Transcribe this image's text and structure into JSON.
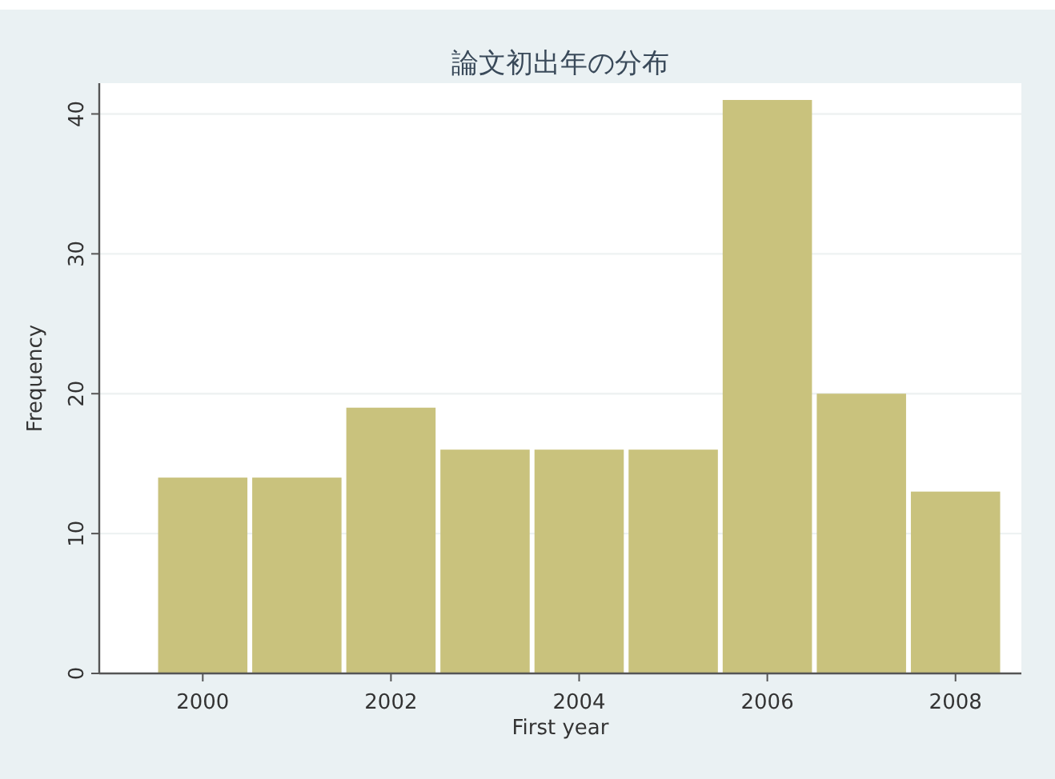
{
  "chart_data": {
    "type": "histogram",
    "title": "論文初出年の分布",
    "xlabel": "First year",
    "ylabel": "Frequency",
    "bins": [
      1999.5,
      2000.5,
      2001.5,
      2002.5,
      2003.5,
      2004.5,
      2005.5,
      2006.5,
      2007.5,
      2008.5
    ],
    "values": [
      14,
      14,
      19,
      16,
      16,
      16,
      41,
      20,
      13
    ],
    "color": "#c9c27d",
    "xlim": [
      1998.9,
      2008.7
    ],
    "xticks": [
      2000,
      2002,
      2004,
      2006,
      2008
    ],
    "ylim": [
      0,
      42.2
    ],
    "yticks": [
      0,
      10,
      20,
      30,
      40
    ],
    "grid": "y"
  }
}
